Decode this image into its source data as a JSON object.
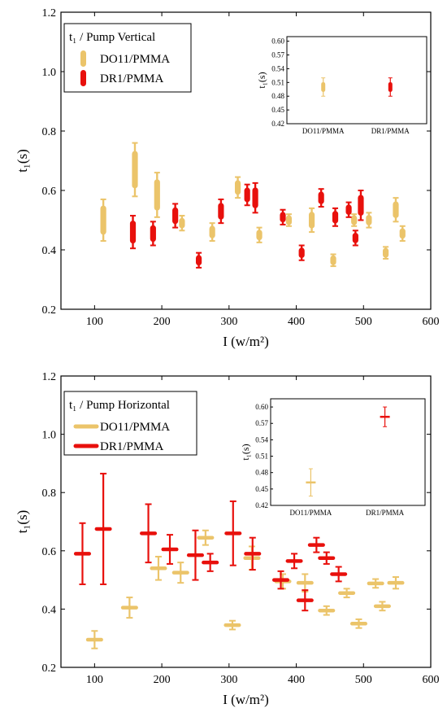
{
  "colors": {
    "do11": "#EBC46A",
    "dr1": "#E8100C",
    "axis": "#000000",
    "background": "#ffffff"
  },
  "chart_data": [
    {
      "type": "scatter",
      "error_bars": "vertical",
      "xlabel": "I (w/m²)",
      "ylabel": "t₁(s)",
      "xlim": [
        50,
        600
      ],
      "ylim": [
        0.2,
        1.2
      ],
      "xticks": [
        100,
        200,
        300,
        400,
        500,
        600
      ],
      "yticks": [
        0.2,
        0.4,
        0.6,
        0.8,
        1.0,
        1.2
      ],
      "xtick_labels": [
        "100",
        "200",
        "300",
        "400",
        "500",
        "600"
      ],
      "ytick_labels": [
        "0.2",
        "0.4",
        "0.6",
        "0.8",
        "1.0",
        "1.2"
      ],
      "grid": false,
      "legend_title": "t₁ / Pump Vertical",
      "legend_position": "top-left",
      "series": [
        {
          "name": "DO11/PMMA",
          "color_key": "do11",
          "points": [
            {
              "x": 113,
              "y": 0.5,
              "err": 0.07
            },
            {
              "x": 160,
              "y": 0.67,
              "err": 0.09
            },
            {
              "x": 193,
              "y": 0.585,
              "err": 0.075
            },
            {
              "x": 230,
              "y": 0.49,
              "err": 0.025
            },
            {
              "x": 275,
              "y": 0.46,
              "err": 0.03
            },
            {
              "x": 313,
              "y": 0.61,
              "err": 0.035
            },
            {
              "x": 345,
              "y": 0.45,
              "err": 0.025
            },
            {
              "x": 389,
              "y": 0.5,
              "err": 0.02
            },
            {
              "x": 423,
              "y": 0.5,
              "err": 0.04
            },
            {
              "x": 455,
              "y": 0.365,
              "err": 0.02
            },
            {
              "x": 486,
              "y": 0.5,
              "err": 0.02
            },
            {
              "x": 508,
              "y": 0.5,
              "err": 0.025
            },
            {
              "x": 533,
              "y": 0.39,
              "err": 0.02
            },
            {
              "x": 548,
              "y": 0.535,
              "err": 0.04
            },
            {
              "x": 558,
              "y": 0.455,
              "err": 0.025
            }
          ]
        },
        {
          "name": "DR1/PMMA",
          "color_key": "dr1",
          "points": [
            {
              "x": 157,
              "y": 0.46,
              "err": 0.055
            },
            {
              "x": 187,
              "y": 0.455,
              "err": 0.04
            },
            {
              "x": 220,
              "y": 0.515,
              "err": 0.04
            },
            {
              "x": 255,
              "y": 0.365,
              "err": 0.025
            },
            {
              "x": 288,
              "y": 0.53,
              "err": 0.04
            },
            {
              "x": 327,
              "y": 0.585,
              "err": 0.035
            },
            {
              "x": 339,
              "y": 0.575,
              "err": 0.05
            },
            {
              "x": 380,
              "y": 0.51,
              "err": 0.025
            },
            {
              "x": 408,
              "y": 0.39,
              "err": 0.025
            },
            {
              "x": 437,
              "y": 0.575,
              "err": 0.03
            },
            {
              "x": 458,
              "y": 0.51,
              "err": 0.03
            },
            {
              "x": 478,
              "y": 0.535,
              "err": 0.025
            },
            {
              "x": 488,
              "y": 0.44,
              "err": 0.025
            },
            {
              "x": 496,
              "y": 0.55,
              "err": 0.05
            }
          ]
        }
      ],
      "inset": {
        "ylabel": "t₁(s)",
        "ylim": [
          0.42,
          0.61
        ],
        "yticks": [
          0.42,
          0.45,
          0.48,
          0.51,
          0.54,
          0.57,
          0.6
        ],
        "ytick_labels": [
          "0.42",
          "0.45",
          "0.48",
          "0.51",
          "0.54",
          "0.57",
          "0.60"
        ],
        "categories": [
          "DO11/PMMA",
          "DR1/PMMA"
        ],
        "points": [
          {
            "category": "DO11/PMMA",
            "y": 0.5,
            "err": 0.02,
            "color_key": "do11"
          },
          {
            "category": "DR1/PMMA",
            "y": 0.5,
            "err": 0.02,
            "color_key": "dr1"
          }
        ]
      }
    },
    {
      "type": "scatter",
      "error_bars": "both",
      "xlabel": "I (w/m²)",
      "ylabel": "t₁(s)",
      "xlim": [
        50,
        600
      ],
      "ylim": [
        0.2,
        1.2
      ],
      "xticks": [
        100,
        200,
        300,
        400,
        500,
        600
      ],
      "yticks": [
        0.2,
        0.4,
        0.6,
        0.8,
        1.0,
        1.2
      ],
      "xtick_labels": [
        "100",
        "200",
        "300",
        "400",
        "500",
        "600"
      ],
      "ytick_labels": [
        "0.2",
        "0.4",
        "0.6",
        "0.8",
        "1.0",
        "1.2"
      ],
      "grid": false,
      "legend_title": "t₁ / Pump Horizontal",
      "legend_position": "top-left",
      "series": [
        {
          "name": "DO11/PMMA",
          "color_key": "do11",
          "points": [
            {
              "x": 100,
              "y": 0.295,
              "err": 0.03,
              "xerr": 10
            },
            {
              "x": 152,
              "y": 0.405,
              "err": 0.035,
              "xerr": 10
            },
            {
              "x": 195,
              "y": 0.54,
              "err": 0.04,
              "xerr": 10
            },
            {
              "x": 228,
              "y": 0.525,
              "err": 0.035,
              "xerr": 10
            },
            {
              "x": 265,
              "y": 0.645,
              "err": 0.025,
              "xerr": 10
            },
            {
              "x": 305,
              "y": 0.345,
              "err": 0.015,
              "xerr": 10
            },
            {
              "x": 334,
              "y": 0.575,
              "err": 0.04,
              "xerr": 10
            },
            {
              "x": 380,
              "y": 0.495,
              "err": 0.025,
              "xerr": 10
            },
            {
              "x": 413,
              "y": 0.49,
              "err": 0.03,
              "xerr": 10
            },
            {
              "x": 445,
              "y": 0.395,
              "err": 0.015,
              "xerr": 10
            },
            {
              "x": 475,
              "y": 0.455,
              "err": 0.015,
              "xerr": 10
            },
            {
              "x": 493,
              "y": 0.35,
              "err": 0.015,
              "xerr": 10
            },
            {
              "x": 518,
              "y": 0.488,
              "err": 0.015,
              "xerr": 10
            },
            {
              "x": 528,
              "y": 0.41,
              "err": 0.015,
              "xerr": 10
            },
            {
              "x": 548,
              "y": 0.49,
              "err": 0.02,
              "xerr": 10
            }
          ]
        },
        {
          "name": "DR1/PMMA",
          "color_key": "dr1",
          "points": [
            {
              "x": 82,
              "y": 0.59,
              "err": 0.105,
              "xerr": 10
            },
            {
              "x": 113,
              "y": 0.675,
              "err": 0.19,
              "xerr": 10
            },
            {
              "x": 180,
              "y": 0.66,
              "err": 0.1,
              "xerr": 10
            },
            {
              "x": 212,
              "y": 0.605,
              "err": 0.05,
              "xerr": 10
            },
            {
              "x": 250,
              "y": 0.585,
              "err": 0.085,
              "xerr": 10
            },
            {
              "x": 272,
              "y": 0.56,
              "err": 0.03,
              "xerr": 10
            },
            {
              "x": 306,
              "y": 0.66,
              "err": 0.11,
              "xerr": 10
            },
            {
              "x": 335,
              "y": 0.59,
              "err": 0.055,
              "xerr": 10
            },
            {
              "x": 377,
              "y": 0.5,
              "err": 0.03,
              "xerr": 10
            },
            {
              "x": 397,
              "y": 0.565,
              "err": 0.025,
              "xerr": 10
            },
            {
              "x": 413,
              "y": 0.43,
              "err": 0.035,
              "xerr": 10
            },
            {
              "x": 430,
              "y": 0.62,
              "err": 0.025,
              "xerr": 10
            },
            {
              "x": 445,
              "y": 0.575,
              "err": 0.02,
              "xerr": 10
            },
            {
              "x": 463,
              "y": 0.52,
              "err": 0.025,
              "xerr": 10
            }
          ]
        }
      ],
      "inset": {
        "ylabel": "t₁(s)",
        "ylim": [
          0.42,
          0.615
        ],
        "yticks": [
          0.42,
          0.45,
          0.48,
          0.51,
          0.54,
          0.57,
          0.6
        ],
        "ytick_labels": [
          "0.42",
          "0.45",
          "0.48",
          "0.51",
          "0.54",
          "0.57",
          "0.60"
        ],
        "categories": [
          "DO11/PMMA",
          "DR1/PMMA"
        ],
        "points": [
          {
            "category": "DO11/PMMA",
            "y": 0.462,
            "err": 0.025,
            "color_key": "do11"
          },
          {
            "category": "DR1/PMMA",
            "y": 0.582,
            "err": 0.018,
            "color_key": "dr1"
          }
        ]
      }
    }
  ]
}
